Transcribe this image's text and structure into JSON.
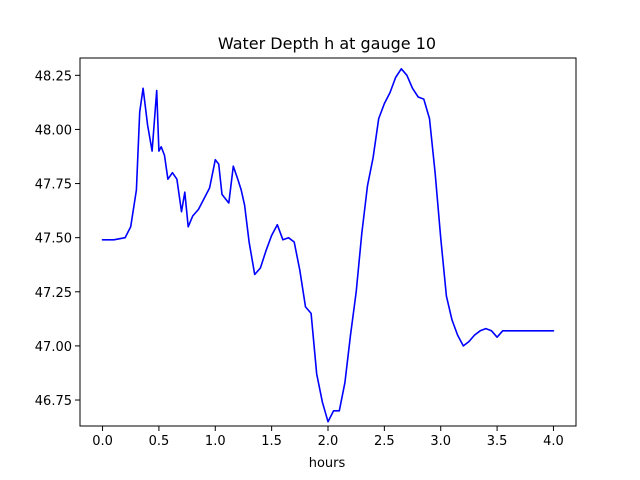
{
  "chart_data": {
    "type": "line",
    "title": "Water Depth h at gauge 10",
    "xlabel": "hours",
    "ylabel": "",
    "xlim": [
      -0.2,
      4.2
    ],
    "ylim": [
      46.63,
      48.33
    ],
    "xticks": [
      "0.0",
      "0.5",
      "1.0",
      "1.5",
      "2.0",
      "2.5",
      "3.0",
      "3.5",
      "4.0"
    ],
    "yticks": [
      "46.75",
      "47.00",
      "47.25",
      "47.50",
      "47.75",
      "48.00",
      "48.25"
    ],
    "grid": false,
    "line_color": "#0000ff",
    "series": [
      {
        "name": "",
        "x": [
          0.0,
          0.1,
          0.2,
          0.25,
          0.3,
          0.33,
          0.36,
          0.4,
          0.44,
          0.48,
          0.5,
          0.52,
          0.55,
          0.58,
          0.62,
          0.66,
          0.7,
          0.73,
          0.76,
          0.8,
          0.85,
          0.9,
          0.95,
          1.0,
          1.03,
          1.06,
          1.09,
          1.12,
          1.16,
          1.2,
          1.23,
          1.26,
          1.3,
          1.35,
          1.4,
          1.45,
          1.5,
          1.55,
          1.6,
          1.65,
          1.7,
          1.75,
          1.8,
          1.85,
          1.9,
          1.95,
          2.0,
          2.05,
          2.1,
          2.15,
          2.2,
          2.25,
          2.3,
          2.35,
          2.4,
          2.45,
          2.5,
          2.55,
          2.6,
          2.65,
          2.7,
          2.75,
          2.8,
          2.85,
          2.9,
          2.95,
          3.0,
          3.05,
          3.1,
          3.15,
          3.2,
          3.25,
          3.3,
          3.35,
          3.4,
          3.45,
          3.5,
          3.55,
          3.6,
          3.65,
          3.7,
          3.75,
          3.8,
          3.85,
          3.9,
          3.95,
          4.0
        ],
        "values": [
          47.49,
          47.49,
          47.5,
          47.55,
          47.72,
          48.08,
          48.19,
          48.02,
          47.9,
          48.18,
          47.9,
          47.92,
          47.88,
          47.77,
          47.8,
          47.77,
          47.62,
          47.71,
          47.55,
          47.6,
          47.63,
          47.68,
          47.73,
          47.86,
          47.84,
          47.7,
          47.68,
          47.66,
          47.83,
          47.77,
          47.72,
          47.65,
          47.48,
          47.33,
          47.36,
          47.44,
          47.51,
          47.56,
          47.49,
          47.5,
          47.48,
          47.35,
          47.18,
          47.15,
          46.87,
          46.74,
          46.65,
          46.7,
          46.7,
          46.83,
          47.05,
          47.25,
          47.52,
          47.74,
          47.87,
          48.05,
          48.12,
          48.17,
          48.24,
          48.28,
          48.25,
          48.19,
          48.15,
          48.14,
          48.05,
          47.8,
          47.5,
          47.23,
          47.12,
          47.05,
          47.0,
          47.02,
          47.05,
          47.07,
          47.08,
          47.07,
          47.04,
          47.07,
          47.07,
          47.07,
          47.07,
          47.07,
          47.07,
          47.07,
          47.07,
          47.07,
          47.07
        ]
      }
    ]
  }
}
